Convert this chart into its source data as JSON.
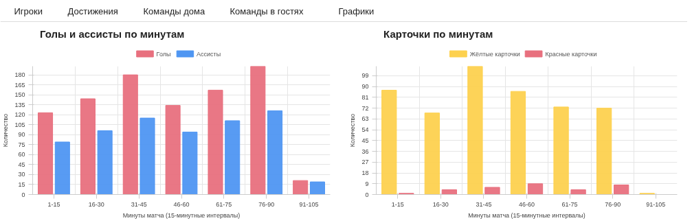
{
  "chart_data": [
    {
      "type": "other",
      "annotations": [
        "Игроки",
        "Достижения",
        "Команды дома",
        "Команды в гостях",
        "Графики"
      ]
    },
    {
      "type": "bar",
      "title": "Голы и ассисты по минутам",
      "xlabel": "Минуты матча (15-минутные интервалы)",
      "ylabel": "Количество",
      "categories": [
        "1-15",
        "16-30",
        "31-45",
        "46-60",
        "61-75",
        "76-90",
        "91-105"
      ],
      "series": [
        {
          "name": "Голы",
          "color": "#e8707e",
          "values": [
            123,
            144,
            180,
            134,
            157,
            193,
            21
          ]
        },
        {
          "name": "Ассисты",
          "color": "#4f96f2",
          "values": [
            79,
            96,
            115,
            94,
            111,
            126,
            19
          ]
        }
      ],
      "ylim": [
        0,
        193
      ],
      "yticks": [
        0,
        15,
        30,
        45,
        60,
        75,
        90,
        105,
        120,
        135,
        150,
        165,
        180
      ],
      "grid": true,
      "legend": "top"
    },
    {
      "type": "bar",
      "title": "Карточки по минутам",
      "xlabel": "Минуты матча (15-минутные интервалы)",
      "ylabel": "Количество",
      "categories": [
        "1-15",
        "16-30",
        "31-45",
        "46-60",
        "61-75",
        "76-90",
        "91-105"
      ],
      "series": [
        {
          "name": "Жёлтые карточки",
          "color": "#fdd14f",
          "values": [
            87,
            68,
            107,
            86,
            73,
            72,
            1
          ]
        },
        {
          "name": "Красные карточки",
          "color": "#e8707e",
          "values": [
            1,
            4,
            6,
            9,
            4,
            8,
            0
          ]
        }
      ],
      "ylim": [
        0,
        107
      ],
      "yticks": [
        0,
        9,
        18,
        27,
        36,
        45,
        54,
        63,
        72,
        81,
        90,
        99
      ],
      "grid": true,
      "legend": "top"
    }
  ]
}
